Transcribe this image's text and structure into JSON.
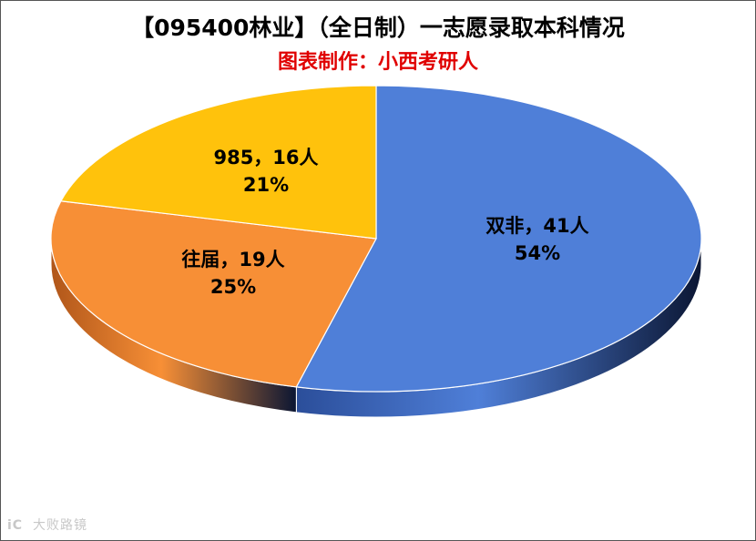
{
  "title": "【095400林业】（全日制）一志愿录取本科情况",
  "subtitle": "图表制作：小西考研人",
  "subtitle_color": "#e00000",
  "watermark": {
    "logo": "iC",
    "text": "大败路镜"
  },
  "chart_data": {
    "type": "pie",
    "style": "3d",
    "title": "【095400林业】（全日制）一志愿录取本科情况",
    "subtitle": "图表制作：小西考研人",
    "categories": [
      "双非",
      "往届",
      "985"
    ],
    "values": [
      41,
      19,
      16
    ],
    "unit": "人",
    "percent_labels": [
      "54%",
      "25%",
      "21%"
    ],
    "data_labels": [
      "双非，41人",
      "往届，19人",
      "985，16人"
    ],
    "colors": [
      "#4f7fd8",
      "#f78f36",
      "#ffc20c"
    ],
    "side_colors": [
      "#2b4e9a",
      "#b0561a",
      "#c08f00"
    ],
    "legend": "none",
    "grid": false,
    "start": "12 o'clock",
    "direction": "clockwise"
  }
}
